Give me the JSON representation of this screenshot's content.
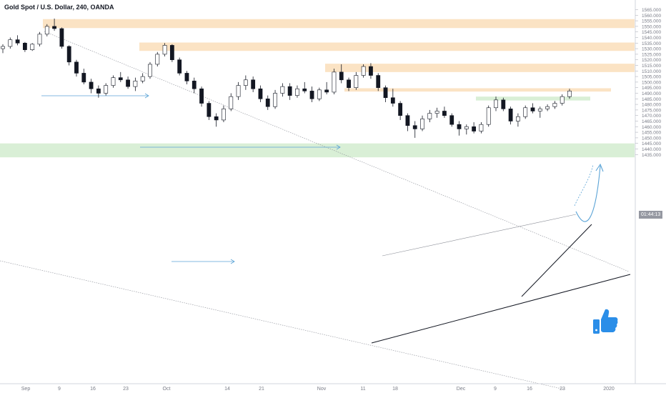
{
  "chart_data": {
    "type": "candlestick",
    "title": "Gold Spot / U.S. Dollar, 240, OANDA",
    "ylim": [
      1432.5,
      1567.5
    ],
    "grid": false,
    "y_ticks": [
      "1565.000",
      "1560.000",
      "1555.000",
      "1550.000",
      "1545.000",
      "1540.000",
      "1535.000",
      "1530.000",
      "1525.000",
      "1520.000",
      "1515.000",
      "1510.000",
      "1505.000",
      "1500.000",
      "1495.000",
      "1490.000",
      "1485.000",
      "1480.000",
      "1475.000",
      "1470.000",
      "1465.000",
      "1460.000",
      "1455.000",
      "1450.000",
      "1445.000",
      "1440.000",
      "1435.000"
    ],
    "x_ticks": [
      "Sep",
      "9",
      "16",
      "23",
      "Oct",
      "14",
      "21",
      "Nov",
      "11",
      "18",
      "Dec",
      "9",
      "16",
      "23",
      "2020"
    ],
    "current_price_label": "01:44:13",
    "series": [
      {
        "values": [
          [
            1530,
            1534,
            1526,
            1532
          ],
          [
            1532,
            1540,
            1530,
            1538
          ],
          [
            1538,
            1542,
            1533,
            1535
          ],
          [
            1535,
            1536,
            1527,
            1529
          ],
          [
            1529,
            1535,
            1528,
            1534
          ],
          [
            1534,
            1545,
            1532,
            1543
          ],
          [
            1543,
            1552,
            1541,
            1550
          ],
          [
            1550,
            1557,
            1546,
            1548
          ],
          [
            1548,
            1549,
            1530,
            1532
          ],
          [
            1532,
            1533,
            1515,
            1518
          ],
          [
            1518,
            1520,
            1505,
            1508
          ],
          [
            1508,
            1512,
            1498,
            1500
          ],
          [
            1500,
            1503,
            1490,
            1494
          ],
          [
            1494,
            1497,
            1486,
            1490
          ],
          [
            1490,
            1499,
            1488,
            1497
          ],
          [
            1497,
            1506,
            1495,
            1504
          ],
          [
            1504,
            1509,
            1500,
            1502
          ],
          [
            1502,
            1505,
            1494,
            1496
          ],
          [
            1496,
            1504,
            1492,
            1501
          ],
          [
            1501,
            1508,
            1499,
            1505
          ],
          [
            1505,
            1518,
            1503,
            1516
          ],
          [
            1516,
            1527,
            1514,
            1525
          ],
          [
            1525,
            1535,
            1523,
            1533
          ],
          [
            1533,
            1534,
            1518,
            1520
          ],
          [
            1520,
            1522,
            1506,
            1508
          ],
          [
            1508,
            1510,
            1498,
            1501
          ],
          [
            1501,
            1504,
            1490,
            1494
          ],
          [
            1494,
            1496,
            1478,
            1481
          ],
          [
            1481,
            1483,
            1466,
            1469
          ],
          [
            1469,
            1472,
            1460,
            1466
          ],
          [
            1466,
            1479,
            1464,
            1476
          ],
          [
            1476,
            1490,
            1474,
            1487
          ],
          [
            1487,
            1500,
            1484,
            1497
          ],
          [
            1497,
            1506,
            1493,
            1502
          ],
          [
            1502,
            1505,
            1491,
            1494
          ],
          [
            1494,
            1497,
            1482,
            1485
          ],
          [
            1485,
            1488,
            1475,
            1478
          ],
          [
            1478,
            1493,
            1476,
            1490
          ],
          [
            1490,
            1499,
            1487,
            1496
          ],
          [
            1496,
            1499,
            1484,
            1488
          ],
          [
            1488,
            1497,
            1486,
            1494
          ],
          [
            1494,
            1500,
            1490,
            1492
          ],
          [
            1492,
            1496,
            1482,
            1485
          ],
          [
            1485,
            1495,
            1483,
            1493
          ],
          [
            1493,
            1500,
            1489,
            1491
          ],
          [
            1491,
            1512,
            1489,
            1509
          ],
          [
            1509,
            1516,
            1499,
            1502
          ],
          [
            1502,
            1504,
            1492,
            1495
          ],
          [
            1495,
            1509,
            1493,
            1506
          ],
          [
            1506,
            1516,
            1504,
            1514
          ],
          [
            1514,
            1517,
            1503,
            1506
          ],
          [
            1506,
            1508,
            1492,
            1495
          ],
          [
            1495,
            1497,
            1482,
            1486
          ],
          [
            1486,
            1494,
            1478,
            1481
          ],
          [
            1481,
            1483,
            1466,
            1470
          ],
          [
            1470,
            1472,
            1456,
            1461
          ],
          [
            1461,
            1465,
            1450,
            1458
          ],
          [
            1458,
            1470,
            1456,
            1467
          ],
          [
            1467,
            1475,
            1464,
            1472
          ],
          [
            1472,
            1477,
            1468,
            1474
          ],
          [
            1474,
            1478,
            1468,
            1470
          ],
          [
            1470,
            1472,
            1460,
            1462
          ],
          [
            1462,
            1465,
            1452,
            1458
          ],
          [
            1458,
            1462,
            1453,
            1460
          ],
          [
            1460,
            1464,
            1454,
            1456
          ],
          [
            1456,
            1464,
            1454,
            1462
          ],
          [
            1462,
            1479,
            1460,
            1477
          ],
          [
            1477,
            1487,
            1474,
            1484
          ],
          [
            1484,
            1486,
            1474,
            1476
          ],
          [
            1476,
            1478,
            1462,
            1465
          ],
          [
            1465,
            1472,
            1460,
            1469
          ],
          [
            1469,
            1479,
            1467,
            1477
          ],
          [
            1477,
            1481,
            1472,
            1474
          ],
          [
            1474,
            1478,
            1468,
            1476
          ],
          [
            1476,
            1480,
            1474,
            1478
          ],
          [
            1478,
            1483,
            1476,
            1481
          ],
          [
            1481,
            1489,
            1479,
            1487
          ],
          [
            1487,
            1494,
            1485,
            1492
          ]
        ]
      }
    ],
    "zones": [
      {
        "kind": "resistance",
        "y_low": 1548.5,
        "y_high": 1556.5
      },
      {
        "kind": "resistance",
        "y_low": 1528.0,
        "y_high": 1535.5
      },
      {
        "kind": "resistance",
        "y_low": 1509.0,
        "y_high": 1516.5
      },
      {
        "kind": "resistance",
        "y_low": 1491.5,
        "y_high": 1494.5
      },
      {
        "kind": "support",
        "y_low": 1483.5,
        "y_high": 1487.0
      },
      {
        "kind": "support",
        "y_low": 1432.5,
        "y_high": 1445.0
      }
    ]
  },
  "colors": {
    "resistance_zone": "#fbe3c4",
    "support_zone": "#d9efd6",
    "candle": "#131722",
    "arrow": "#5aa3d6",
    "trendline": "#131722",
    "axis_text": "#787b86",
    "like_blue": "#2b8ee8"
  },
  "icons": {
    "like": "thumbs-up-icon"
  }
}
